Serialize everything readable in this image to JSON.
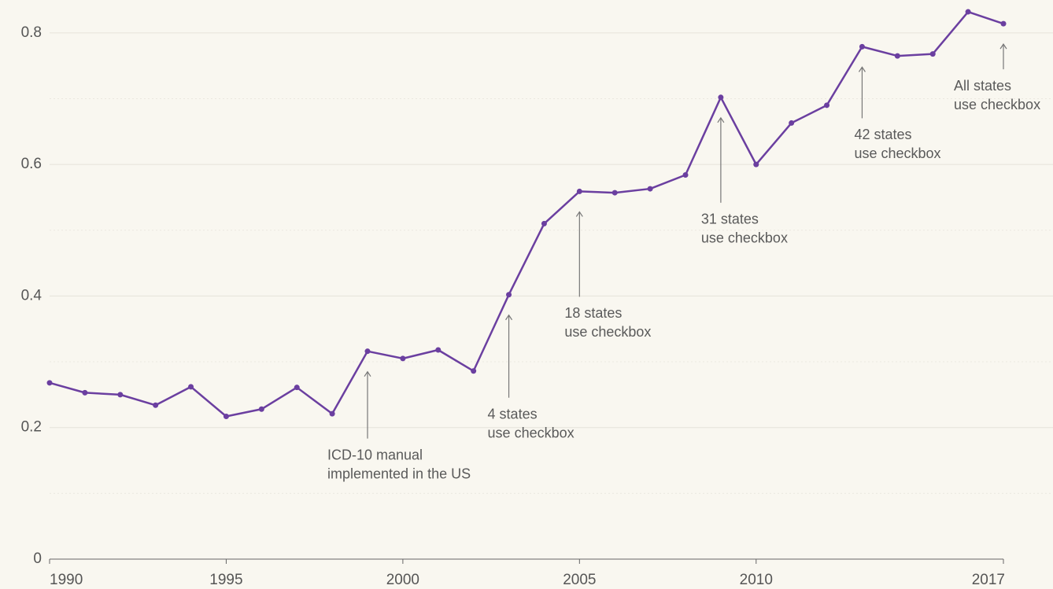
{
  "chart_data": {
    "type": "line",
    "x": [
      1990,
      1991,
      1992,
      1993,
      1994,
      1995,
      1996,
      1997,
      1998,
      1999,
      2000,
      2001,
      2002,
      2003,
      2004,
      2005,
      2006,
      2007,
      2008,
      2009,
      2010,
      2011,
      2012,
      2013,
      2014,
      2015,
      2016,
      2017
    ],
    "series": [
      {
        "color": "#6b3fa0",
        "values": [
          0.268,
          0.253,
          0.25,
          0.234,
          0.262,
          0.217,
          0.228,
          0.261,
          0.221,
          0.316,
          0.305,
          0.318,
          0.286,
          0.402,
          0.51,
          0.559,
          0.557,
          0.563,
          0.584,
          0.702,
          0.6,
          0.663,
          0.69,
          0.779,
          0.765,
          0.768,
          0.832,
          0.814
        ]
      }
    ],
    "xlim": [
      1990,
      2017
    ],
    "xticks": [
      1990,
      1995,
      2000,
      2005,
      2010,
      2017
    ],
    "ylim": [
      0,
      0.85
    ],
    "yticks": [
      0,
      0.2,
      0.4,
      0.6,
      0.8
    ],
    "minor_yticks": [
      0.1,
      0.3,
      0.5,
      0.7
    ],
    "grid": true,
    "annotations": [
      {
        "x": 1999,
        "text": [
          "ICD-10 manual",
          "implemented in the US"
        ]
      },
      {
        "x": 2003,
        "text": [
          "4 states",
          "use checkbox"
        ]
      },
      {
        "x": 2005,
        "text": [
          "18 states",
          "use checkbox"
        ]
      },
      {
        "x": 2009,
        "text": [
          "31 states",
          "use checkbox"
        ]
      },
      {
        "x": 2013,
        "text": [
          "42 states",
          "use checkbox"
        ]
      },
      {
        "x": 2017,
        "text": [
          "All states",
          "use checkbox"
        ]
      }
    ]
  }
}
